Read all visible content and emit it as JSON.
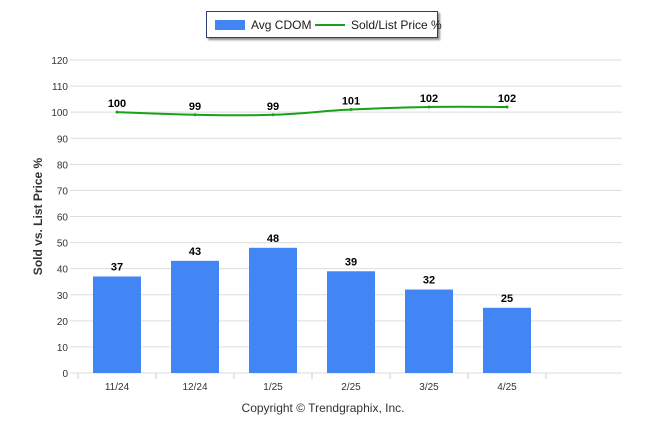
{
  "chart_data": {
    "type": "bar",
    "categories": [
      "11/24",
      "12/24",
      "1/25",
      "2/25",
      "3/25",
      "4/25"
    ],
    "series": [
      {
        "name": "Avg CDOM",
        "type": "bar",
        "values": [
          37,
          43,
          48,
          39,
          32,
          25
        ]
      },
      {
        "name": "Sold/List Price %",
        "type": "line",
        "values": [
          100,
          99,
          99,
          101,
          102,
          102
        ]
      }
    ],
    "ylabel": "Sold vs. List Price %",
    "ylim": [
      0,
      120
    ],
    "yticks": [
      0,
      10,
      20,
      30,
      40,
      50,
      60,
      70,
      80,
      90,
      100,
      110,
      120
    ],
    "grid": true,
    "legend_position": "top-center",
    "colors": {
      "bar": "#4285f4",
      "line": "#1aa11a",
      "grid": "#dddddd",
      "axis_text": "#333333"
    }
  },
  "legend": {
    "bar_label": "Avg CDOM",
    "line_label": "Sold/List Price %"
  },
  "footer": {
    "copyright": "Copyright © Trendgraphix, Inc."
  }
}
